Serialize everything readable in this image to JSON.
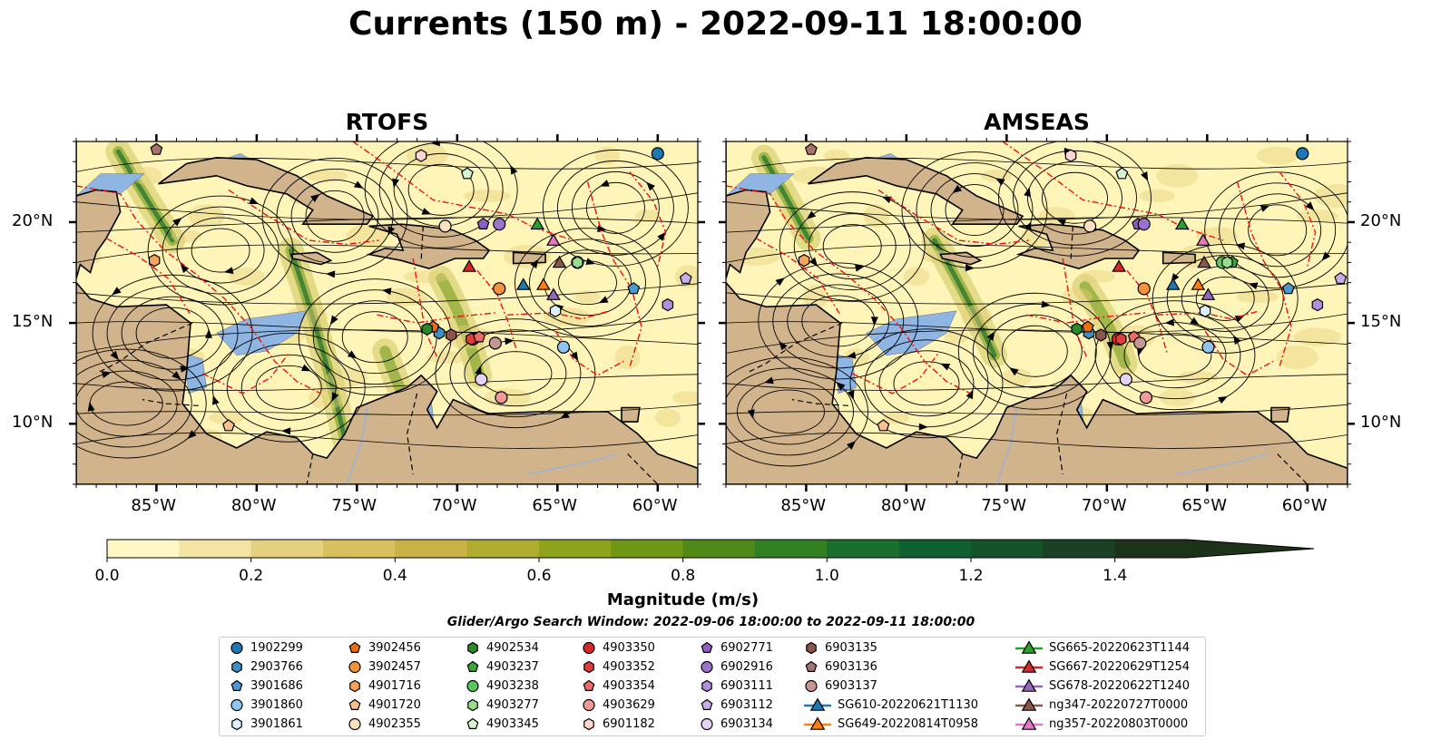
{
  "title": "Currents (150 m) - 2022-09-11 18:00:00",
  "panels": [
    {
      "title": "RTOFS",
      "model": "rtofs"
    },
    {
      "title": "AMSEAS",
      "model": "amseas"
    }
  ],
  "axes": {
    "lon_ticks": [
      "85°W",
      "80°W",
      "75°W",
      "70°W",
      "65°W",
      "60°W"
    ],
    "lat_ticks": [
      "20°N",
      "15°N",
      "10°N"
    ],
    "lon_range": [
      -89,
      -58
    ],
    "lat_range": [
      7,
      24
    ]
  },
  "colorbar": {
    "label": "Magnitude (m/s)",
    "ticks": [
      "0.0",
      "0.2",
      "0.4",
      "0.6",
      "0.8",
      "1.0",
      "1.2",
      "1.4"
    ],
    "range": [
      0,
      1.5
    ],
    "extend": "max",
    "colors": [
      "#fff8c4",
      "#f2e4a3",
      "#e4d07e",
      "#d8c05e",
      "#c9b146",
      "#aead2f",
      "#8ea21c",
      "#6e9716",
      "#4f8a18",
      "#338022",
      "#1b6f2e",
      "#0f6130",
      "#14522a",
      "#1a4123",
      "#1c3219"
    ]
  },
  "search_window": "Glider/Argo Search Window: 2022-09-06 18:00:00 to 2022-09-11 18:00:00",
  "map_colors": {
    "ocean": "#fff5b8",
    "land": "#d2b48c",
    "shelf": "#8fb5e3",
    "eez": "#ee1111",
    "streamline": "#000000"
  },
  "legend": [
    {
      "label": "1902299",
      "marker": "circle",
      "color": "#1f77b4"
    },
    {
      "label": "2903766",
      "marker": "hexagon",
      "color": "#3f8fc4"
    },
    {
      "label": "3901686",
      "marker": "pentagon",
      "color": "#4a98d0"
    },
    {
      "label": "3901860",
      "marker": "circle",
      "color": "#8fc4ee"
    },
    {
      "label": "3901861",
      "marker": "hexagon",
      "color": "#dcefff"
    },
    {
      "label": "3902456",
      "marker": "pentagon",
      "color": "#e8700e"
    },
    {
      "label": "3902457",
      "marker": "circle",
      "color": "#f5923a"
    },
    {
      "label": "4901716",
      "marker": "hexagon",
      "color": "#f7a559"
    },
    {
      "label": "4901720",
      "marker": "pentagon",
      "color": "#fbc08e"
    },
    {
      "label": "4902355",
      "marker": "circle",
      "color": "#fde0c0"
    },
    {
      "label": "4902534",
      "marker": "hexagon",
      "color": "#2a8a2a"
    },
    {
      "label": "4903237",
      "marker": "pentagon",
      "color": "#3aa63a"
    },
    {
      "label": "4903238",
      "marker": "circle",
      "color": "#5cc65c"
    },
    {
      "label": "4903277",
      "marker": "hexagon",
      "color": "#98dd8a"
    },
    {
      "label": "4903345",
      "marker": "pentagon",
      "color": "#d6f5cc"
    },
    {
      "label": "4903350",
      "marker": "circle",
      "color": "#d62728"
    },
    {
      "label": "4903352",
      "marker": "hexagon",
      "color": "#e03c3c"
    },
    {
      "label": "4903354",
      "marker": "pentagon",
      "color": "#ec6a6a"
    },
    {
      "label": "4903629",
      "marker": "circle",
      "color": "#f49a96"
    },
    {
      "label": "6901182",
      "marker": "hexagon",
      "color": "#fdd6d0"
    },
    {
      "label": "6902771",
      "marker": "pentagon",
      "color": "#8e5fc2"
    },
    {
      "label": "6902916",
      "marker": "circle",
      "color": "#9b72cc"
    },
    {
      "label": "6903111",
      "marker": "hexagon",
      "color": "#b090dc"
    },
    {
      "label": "6903112",
      "marker": "pentagon",
      "color": "#c8aee8"
    },
    {
      "label": "6903134",
      "marker": "circle",
      "color": "#e5d2f8"
    },
    {
      "label": "6903135",
      "marker": "hexagon",
      "color": "#8c564b"
    },
    {
      "label": "6903136",
      "marker": "pentagon",
      "color": "#a8736a"
    },
    {
      "label": "6903137",
      "marker": "circle",
      "color": "#c49890"
    },
    {
      "label": "SG610-20220621T1130",
      "marker": "triangle",
      "color": "#1f77b4"
    },
    {
      "label": "SG649-20220814T0958",
      "marker": "triangle",
      "color": "#ff7f0e"
    },
    {
      "label": "SG665-20220623T1144",
      "marker": "triangle",
      "color": "#2ca02c"
    },
    {
      "label": "SG667-20220629T1254",
      "marker": "triangle",
      "color": "#d62728"
    },
    {
      "label": "SG678-20220622T1240",
      "marker": "triangle",
      "color": "#9467bd"
    },
    {
      "label": "ng347-20220727T0000",
      "marker": "triangle",
      "color": "#8c564b"
    },
    {
      "label": "ng357-20220803T0000",
      "marker": "triangle",
      "color": "#e377c2"
    }
  ],
  "platforms": [
    {
      "id": "1902299",
      "lon": -60.0,
      "lat": 23.4
    },
    {
      "id": "2903766",
      "lon": -70.9,
      "lat": 14.5
    },
    {
      "id": "3901686",
      "lon": -61.2,
      "lat": 16.7
    },
    {
      "id": "3901860",
      "lon": -64.7,
      "lat": 13.8
    },
    {
      "id": "3901861",
      "lon": -65.1,
      "lat": 15.6
    },
    {
      "id": "3902456",
      "lon": -71.2,
      "lat": 14.8
    },
    {
      "id": "3902457",
      "lon": -67.9,
      "lat": 16.7
    },
    {
      "id": "4901716",
      "lon": -85.1,
      "lat": 18.1
    },
    {
      "id": "4901720",
      "lon": -81.4,
      "lat": 9.9
    },
    {
      "id": "4902355",
      "lon": -70.6,
      "lat": 19.8
    },
    {
      "id": "4902534",
      "lon": -71.5,
      "lat": 14.7
    },
    {
      "id": "4903237",
      "lon": -64.0,
      "lat": 18.0
    },
    {
      "id": "4903238",
      "lon": -64.0,
      "lat": 18.0
    },
    {
      "id": "4903277",
      "lon": -64.0,
      "lat": 18.0
    },
    {
      "id": "4903345",
      "lon": -69.5,
      "lat": 22.4
    },
    {
      "id": "4903350",
      "lon": -69.2,
      "lat": 14.2
    },
    {
      "id": "4903352",
      "lon": -69.3,
      "lat": 14.2
    },
    {
      "id": "4903354",
      "lon": -68.9,
      "lat": 14.3
    },
    {
      "id": "4903629",
      "lon": -67.8,
      "lat": 11.3
    },
    {
      "id": "6901182",
      "lon": -71.8,
      "lat": 23.3
    },
    {
      "id": "6902771",
      "lon": -68.7,
      "lat": 19.9
    },
    {
      "id": "6902916",
      "lon": -67.9,
      "lat": 19.9
    },
    {
      "id": "6903111",
      "lon": -59.5,
      "lat": 15.9
    },
    {
      "id": "6903112",
      "lon": -58.6,
      "lat": 17.2
    },
    {
      "id": "6903134",
      "lon": -68.8,
      "lat": 12.2
    },
    {
      "id": "6903135",
      "lon": -70.3,
      "lat": 14.4
    },
    {
      "id": "6903136",
      "lon": -85.0,
      "lat": 23.6
    },
    {
      "id": "6903137",
      "lon": -68.1,
      "lat": 14.0
    },
    {
      "id": "SG610-20220621T1130",
      "lon": -66.7,
      "lat": 16.9
    },
    {
      "id": "SG649-20220814T0958",
      "lon": -65.7,
      "lat": 16.9
    },
    {
      "id": "SG665-20220623T1144",
      "lon": -66.0,
      "lat": 19.9
    },
    {
      "id": "SG667-20220629T1254",
      "lon": -69.4,
      "lat": 17.8
    },
    {
      "id": "SG678-20220622T1240",
      "lon": -65.2,
      "lat": 16.4
    },
    {
      "id": "ng347-20220727T0000",
      "lon": -64.9,
      "lat": 18.0
    },
    {
      "id": "ng357-20220803T0000",
      "lon": -65.2,
      "lat": 19.1
    }
  ]
}
